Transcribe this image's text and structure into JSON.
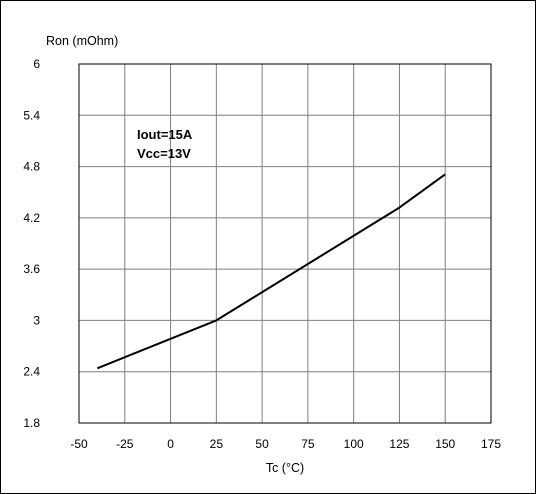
{
  "chart_data": {
    "type": "line",
    "ylabel": "Ron (mOhm)",
    "xlabel": "Tc (°C)",
    "xlim": [
      -50,
      175
    ],
    "ylim": [
      1.8,
      6
    ],
    "x_ticks": [
      "-50",
      "-25",
      "0",
      "25",
      "50",
      "75",
      "100",
      "125",
      "150",
      "175"
    ],
    "y_ticks": [
      "1.8",
      "2.4",
      "3",
      "3.6",
      "4.2",
      "4.8",
      "5.4",
      "6"
    ],
    "grid": true,
    "annotations": [
      "Iout=15A",
      "Vcc=13V"
    ],
    "series": [
      {
        "x": [
          -40,
          25,
          125,
          150
        ],
        "y": [
          2.44,
          3.0,
          4.32,
          4.71
        ],
        "color": "#000000"
      }
    ]
  }
}
